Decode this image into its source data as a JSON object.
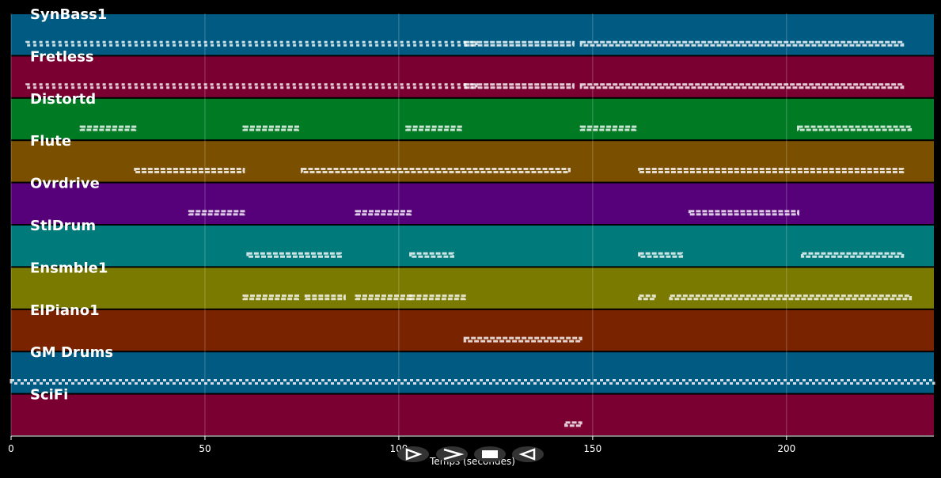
{
  "chart_data": {
    "type": "piano-roll",
    "xlabel": "Temps (secondes)",
    "xlim": [
      0,
      238
    ],
    "xticks": [
      0,
      50,
      100,
      150,
      200
    ],
    "grid": true,
    "tracks": [
      {
        "name": "SynBass1",
        "color": "#005a82",
        "notes": [
          [
            4,
            120
          ],
          [
            117,
            145
          ],
          [
            147,
            230
          ]
        ]
      },
      {
        "name": "Fretless",
        "color": "#7a0032",
        "notes": [
          [
            4,
            120
          ],
          [
            117,
            145
          ],
          [
            147,
            230
          ]
        ]
      },
      {
        "name": "Distortd",
        "color": "#007a23",
        "notes": [
          [
            18,
            32
          ],
          [
            60,
            74
          ],
          [
            102,
            116
          ],
          [
            147,
            161
          ],
          [
            203,
            232
          ]
        ]
      },
      {
        "name": "Flute",
        "color": "#7a4f00",
        "notes": [
          [
            32,
            60
          ],
          [
            75,
            144
          ],
          [
            162,
            230
          ]
        ]
      },
      {
        "name": "Ovrdrive",
        "color": "#56007a",
        "notes": [
          [
            46,
            60
          ],
          [
            89,
            103
          ],
          [
            175,
            203
          ]
        ]
      },
      {
        "name": "StlDrum",
        "color": "#007a7a",
        "notes": [
          [
            61,
            85
          ],
          [
            103,
            114
          ],
          [
            162,
            173
          ],
          [
            204,
            230
          ]
        ]
      },
      {
        "name": "Ensmble1",
        "color": "#7a7a00",
        "notes": [
          [
            60,
            74
          ],
          [
            76,
            86
          ],
          [
            89,
            103
          ],
          [
            103,
            117
          ],
          [
            162,
            166
          ],
          [
            170,
            232
          ]
        ]
      },
      {
        "name": "ElPiano1",
        "color": "#7a2300",
        "notes": [
          [
            117,
            147
          ]
        ]
      },
      {
        "name": "GM Drums",
        "color": "#005a82",
        "notes": [
          [
            0,
            238
          ]
        ]
      },
      {
        "name": "SciFi",
        "color": "#7a0032",
        "notes": [
          [
            143,
            147
          ]
        ]
      }
    ]
  }
}
